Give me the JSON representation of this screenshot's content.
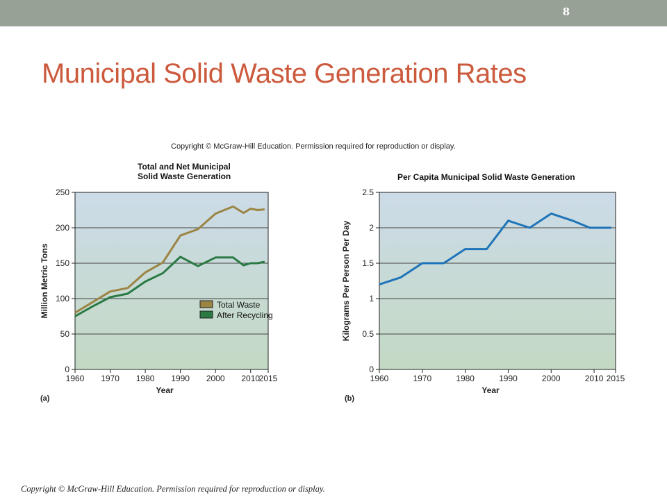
{
  "slide": {
    "page_number": "8",
    "title": "Municipal Solid Waste Generation Rates",
    "figure_copyright": "Copyright © McGraw-Hill Education. Permission required for reproduction or display.",
    "footer_copyright": "Copyright © McGraw-Hill Education. Permission required for reproduction or display."
  },
  "colors": {
    "topbar": "#97a196",
    "title": "#cc5a3d",
    "total_waste": "#9b8444",
    "after_recycling": "#2b7a44",
    "per_capita": "#1e74b8",
    "plot_top": "#ccdbe8",
    "plot_bottom": "#c3d9c3"
  },
  "chart_data": [
    {
      "type": "line",
      "panel_label": "(a)",
      "title_lines": [
        "Total and Net Municipal",
        "Solid Waste Generation"
      ],
      "xlabel": "Year",
      "ylabel": "Million Metric Tons",
      "xlim": [
        1960,
        2015
      ],
      "ylim": [
        0,
        250
      ],
      "xticks": [
        "1960",
        "1970",
        "1980",
        "1990",
        "2000",
        "2010",
        "2015"
      ],
      "yticks": [
        "0",
        "50",
        "100",
        "150",
        "200",
        "250"
      ],
      "grid": true,
      "legend": "center-right",
      "series": [
        {
          "name": "Total Waste",
          "x": [
            1960,
            1965,
            1970,
            1975,
            1980,
            1985,
            1990,
            1995,
            2000,
            2005,
            2008,
            2010,
            2012,
            2014
          ],
          "y": [
            80,
            95,
            110,
            115,
            137,
            151,
            189,
            198,
            220,
            230,
            221,
            227,
            225,
            226
          ]
        },
        {
          "name": "After Recycling",
          "x": [
            1960,
            1965,
            1970,
            1975,
            1980,
            1985,
            1990,
            1995,
            2000,
            2005,
            2008,
            2010,
            2012,
            2014
          ],
          "y": [
            75,
            89,
            102,
            107,
            124,
            136,
            159,
            146,
            158,
            158,
            147,
            150,
            150,
            152
          ]
        }
      ]
    },
    {
      "type": "line",
      "panel_label": "(b)",
      "title_lines": [
        "Per Capita Municipal Solid Waste Generation"
      ],
      "xlabel": "Year",
      "ylabel": "Kilograms Per Person Per Day",
      "xlim": [
        1960,
        2015
      ],
      "ylim": [
        0,
        2.5
      ],
      "xticks": [
        "1960",
        "1970",
        "1980",
        "1990",
        "2000",
        "2010",
        "2015"
      ],
      "yticks": [
        "0",
        "0.5",
        "1",
        "1.5",
        "2",
        "2.5"
      ],
      "grid": true,
      "series": [
        {
          "name": "",
          "x": [
            1960,
            1965,
            1970,
            1975,
            1980,
            1985,
            1990,
            1995,
            2000,
            2005,
            2009,
            2014
          ],
          "y": [
            1.2,
            1.3,
            1.5,
            1.5,
            1.7,
            1.7,
            2.1,
            2.0,
            2.2,
            2.1,
            2.0,
            2.0
          ]
        }
      ]
    }
  ]
}
